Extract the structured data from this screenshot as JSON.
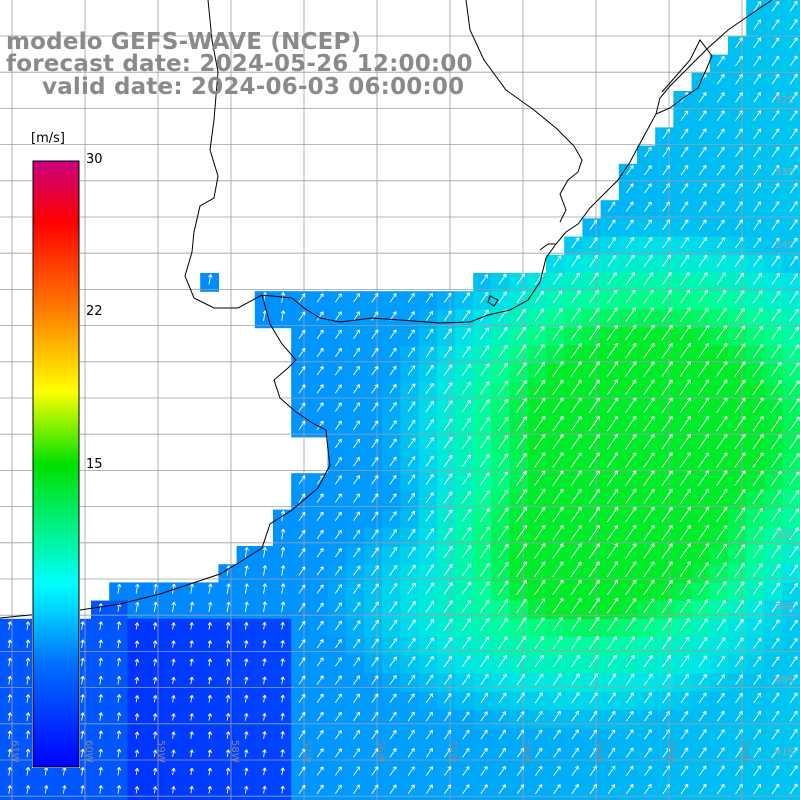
{
  "header": {
    "line1": "modelo GEFS-WAVE (NCEP)",
    "line2": "forecast date: 2024-05-26 12:00:00",
    "line3": "valid date: 2024-06-03 06:00:00"
  },
  "colorbar": {
    "unit": "[m/s]",
    "ticks": [
      "30",
      "22",
      "15"
    ],
    "range": [
      0,
      30
    ],
    "colors": [
      "#0000ff",
      "#0080ff",
      "#00ffff",
      "#00ff00",
      "#ffff00",
      "#ff8000",
      "#ff0000",
      "#c8007f"
    ]
  },
  "latitude_labels": [
    "32S",
    "33S",
    "34S",
    "38S",
    "39S",
    "40S",
    "41S"
  ],
  "longitude_labels": [
    "61W",
    "60W",
    "59W",
    "58W",
    "57W",
    "56W",
    "55W",
    "54W",
    "53W",
    "52W",
    "51W"
  ]
}
